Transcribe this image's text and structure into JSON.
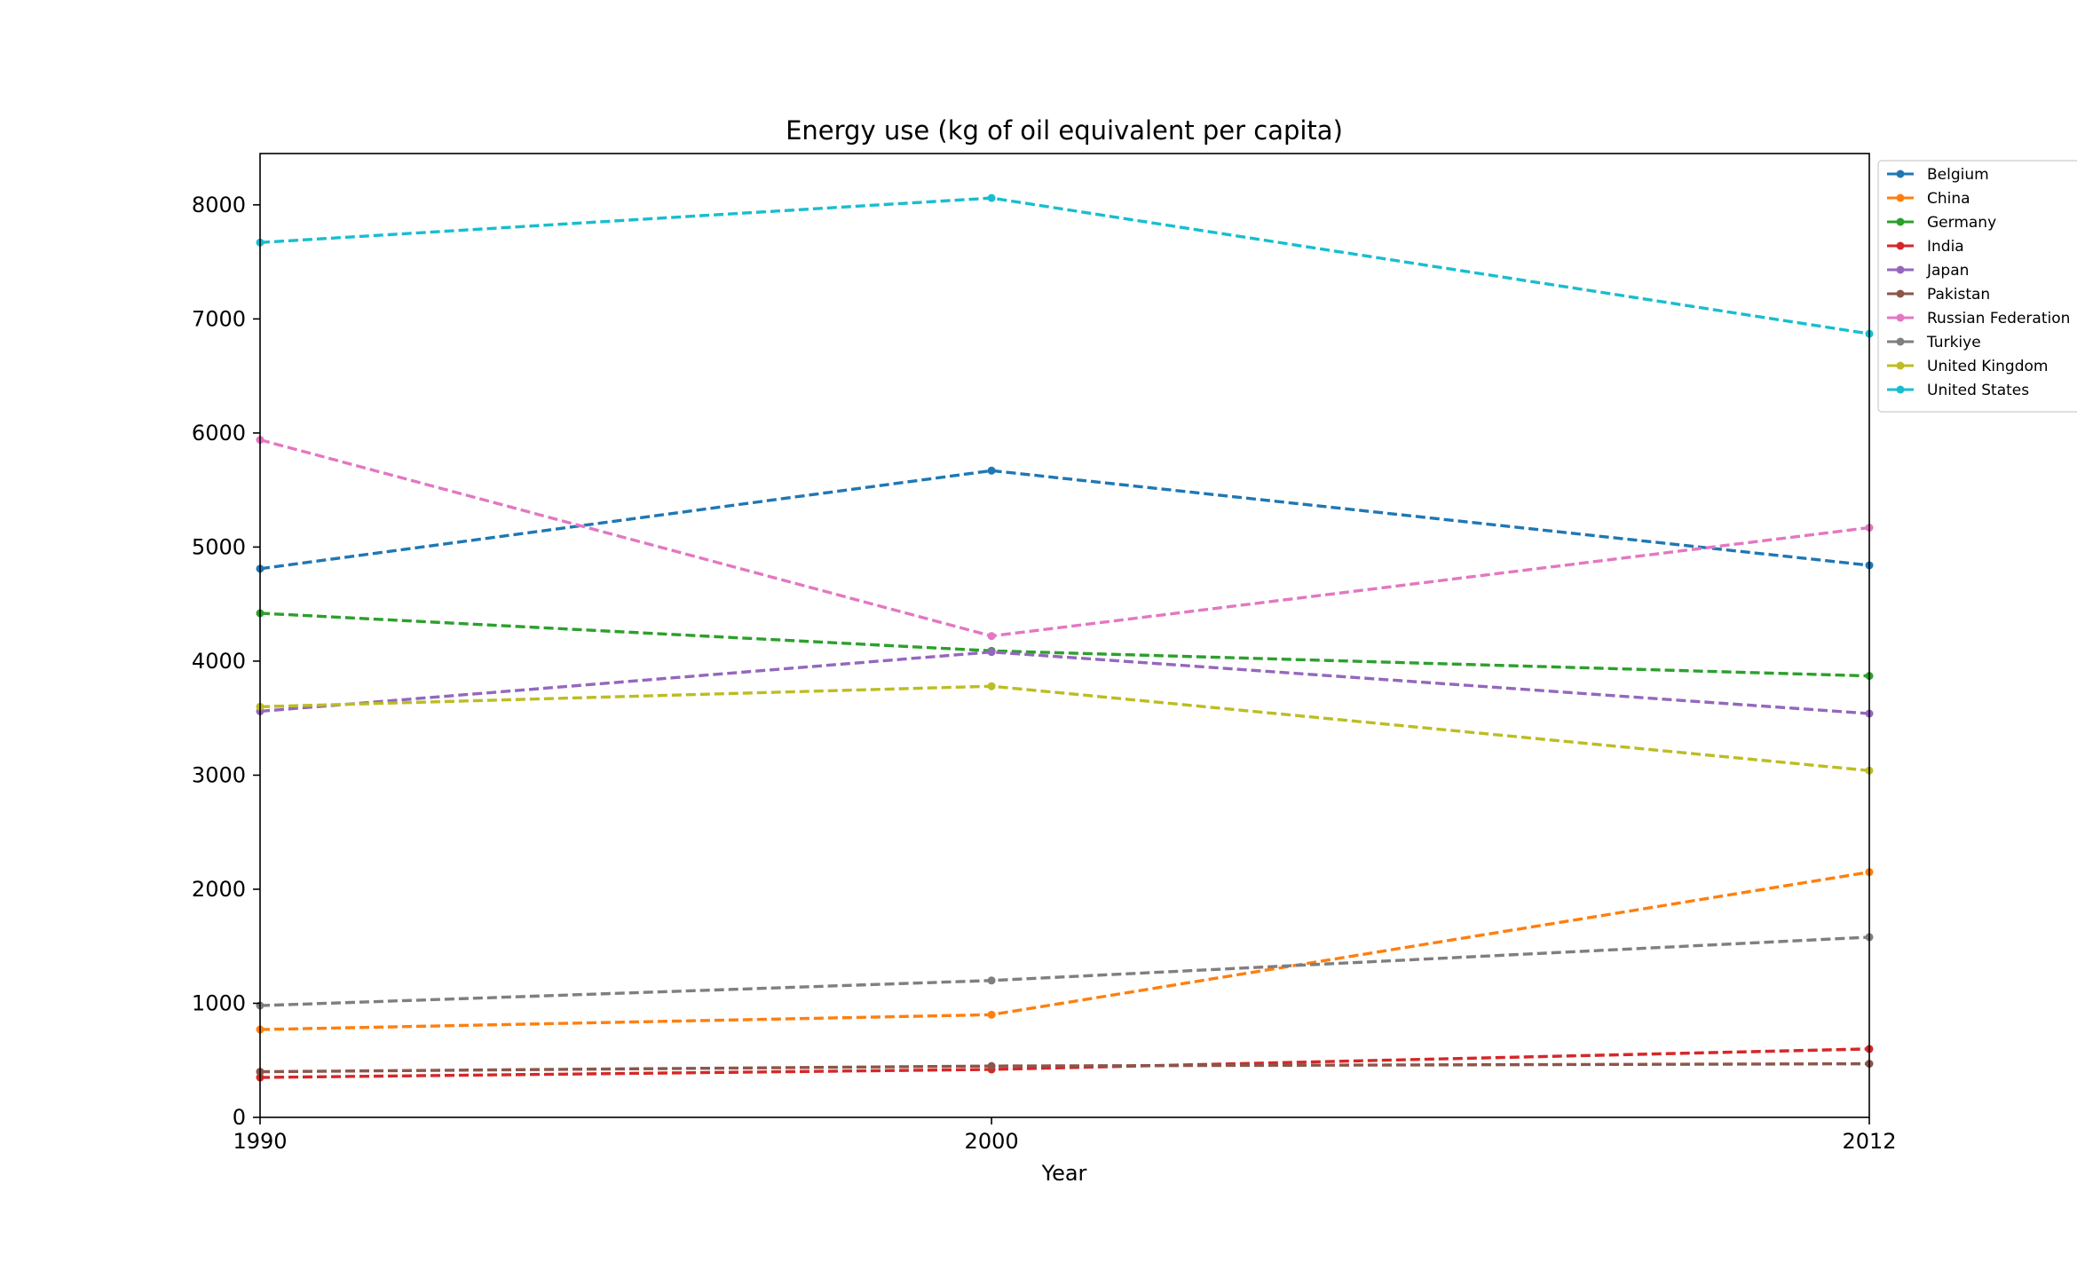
{
  "chart_data": {
    "type": "line",
    "title": "Energy use (kg of oil equivalent per capita)",
    "xlabel": "Year",
    "ylabel": "",
    "x": [
      1990,
      2000,
      2012
    ],
    "x_tick_labels": [
      "1990",
      "2000",
      "2012"
    ],
    "xlim": [
      1990,
      2012
    ],
    "ylim": [
      0,
      8450
    ],
    "y_ticks": [
      0,
      1000,
      2000,
      3000,
      4000,
      5000,
      6000,
      7000,
      8000
    ],
    "y_tick_labels": [
      "0",
      "1000",
      "2000",
      "3000",
      "4000",
      "5000",
      "6000",
      "7000",
      "8000"
    ],
    "grid": false,
    "line_style": "dashed",
    "marker": "circle",
    "legend_placement": "outside-top-right",
    "series": [
      {
        "name": "Belgium",
        "color": "#1f77b4",
        "values": [
          4810,
          5670,
          4840
        ]
      },
      {
        "name": "China",
        "color": "#ff7f0e",
        "values": [
          770,
          900,
          2150
        ]
      },
      {
        "name": "Germany",
        "color": "#2ca02c",
        "values": [
          4420,
          4090,
          3870
        ]
      },
      {
        "name": "India",
        "color": "#d62728",
        "values": [
          350,
          420,
          600
        ]
      },
      {
        "name": "Japan",
        "color": "#9467bd",
        "values": [
          3560,
          4080,
          3540
        ]
      },
      {
        "name": "Pakistan",
        "color": "#8c564b",
        "values": [
          400,
          450,
          470
        ]
      },
      {
        "name": "Russian Federation",
        "color": "#e377c2",
        "values": [
          5940,
          4220,
          5170
        ]
      },
      {
        "name": "Turkiye",
        "color": "#7f7f7f",
        "values": [
          980,
          1200,
          1580
        ]
      },
      {
        "name": "United Kingdom",
        "color": "#bcbd22",
        "values": [
          3600,
          3780,
          3040
        ]
      },
      {
        "name": "United States",
        "color": "#17becf",
        "values": [
          7670,
          8060,
          6870
        ]
      }
    ]
  }
}
